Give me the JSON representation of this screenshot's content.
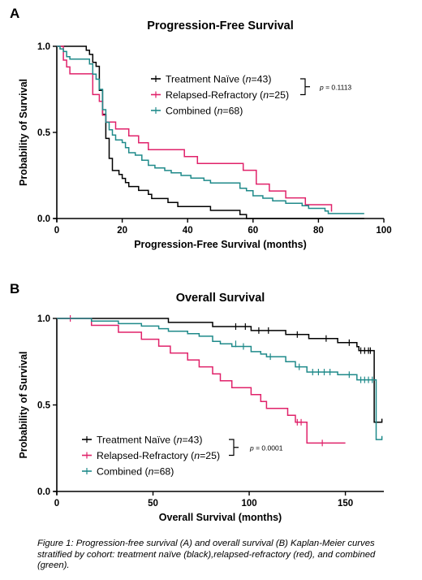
{
  "caption": "Figure 1: Progression-free survival (A) and overall survival (B) Kaplan-Meier curves stratified by cohort: treatment naïve (black),relapsed-refractory (red), and combined (green).",
  "colors": {
    "naive": "#000000",
    "relapsed": "#e0226a",
    "combined": "#1f8a8a"
  },
  "chart_data": [
    {
      "type": "line",
      "panel_label": "A",
      "title": "Progression-Free Survival",
      "xlabel": "Progression-Free Survival (months)",
      "ylabel": "Probability of Survival",
      "xlim": [
        0,
        100
      ],
      "ylim": [
        0,
        1
      ],
      "x_ticks": [
        "0",
        "20",
        "40",
        "60",
        "80",
        "100"
      ],
      "y_ticks": [
        "0.0",
        "0.5",
        "1.0"
      ],
      "legend_position": "upper-right",
      "annotation": "p = 0.1113",
      "step": true,
      "series": [
        {
          "key": "naive",
          "legend": {
            "pre": "Treatment Naïve  (",
            "n": "n",
            "post": "=43)"
          },
          "points": [
            [
              0,
              1.0
            ],
            [
              9,
              1.0
            ],
            [
              9,
              0.977
            ],
            [
              10,
              0.953
            ],
            [
              11,
              0.93
            ],
            [
              11,
              0.907
            ],
            [
              12,
              0.884
            ],
            [
              13,
              0.814
            ],
            [
              13,
              0.744
            ],
            [
              14,
              0.674
            ],
            [
              14,
              0.605
            ],
            [
              15,
              0.535
            ],
            [
              15,
              0.465
            ],
            [
              16,
              0.395
            ],
            [
              16,
              0.349
            ],
            [
              17,
              0.302
            ],
            [
              17,
              0.279
            ],
            [
              19,
              0.256
            ],
            [
              20,
              0.233
            ],
            [
              21,
              0.209
            ],
            [
              22,
              0.186
            ],
            [
              24,
              0.186
            ],
            [
              25,
              0.163
            ],
            [
              27,
              0.163
            ],
            [
              28,
              0.14
            ],
            [
              29,
              0.116
            ],
            [
              33,
              0.116
            ],
            [
              34,
              0.093
            ],
            [
              36,
              0.093
            ],
            [
              37,
              0.07
            ],
            [
              46,
              0.07
            ],
            [
              47,
              0.047
            ],
            [
              55,
              0.047
            ],
            [
              56,
              0.023
            ],
            [
              57,
              0.023
            ],
            [
              58,
              0.0
            ],
            [
              94,
              0.0
            ]
          ]
        },
        {
          "key": "relapsed",
          "legend": {
            "pre": "Relapsed-Refractory  (",
            "n": "n",
            "post": "=25)"
          },
          "points": [
            [
              0,
              1.0
            ],
            [
              1,
              1.0
            ],
            [
              2,
              0.96
            ],
            [
              2,
              0.92
            ],
            [
              3,
              0.88
            ],
            [
              4,
              0.84
            ],
            [
              10,
              0.84
            ],
            [
              11,
              0.72
            ],
            [
              12,
              0.72
            ],
            [
              13,
              0.68
            ],
            [
              14,
              0.6
            ],
            [
              15,
              0.56
            ],
            [
              17,
              0.56
            ],
            [
              18,
              0.52
            ],
            [
              20,
              0.52
            ],
            [
              22,
              0.48
            ],
            [
              24,
              0.48
            ],
            [
              25,
              0.44
            ],
            [
              27,
              0.44
            ],
            [
              28,
              0.4
            ],
            [
              38,
              0.4
            ],
            [
              39,
              0.36
            ],
            [
              42,
              0.36
            ],
            [
              43,
              0.32
            ],
            [
              56,
              0.32
            ],
            [
              57,
              0.28
            ],
            [
              60,
              0.28
            ],
            [
              61,
              0.2
            ],
            [
              64,
              0.2
            ],
            [
              65,
              0.16
            ],
            [
              69,
              0.16
            ],
            [
              70,
              0.12
            ],
            [
              75,
              0.12
            ],
            [
              76,
              0.08
            ],
            [
              83,
              0.08
            ],
            [
              84,
              0.04
            ]
          ]
        },
        {
          "key": "combined",
          "legend": {
            "pre": "Combined (",
            "n": "n",
            "post": "=68)"
          },
          "points": [
            [
              0,
              1.0
            ],
            [
              1,
              0.985
            ],
            [
              2,
              0.97
            ],
            [
              3,
              0.94
            ],
            [
              4,
              0.926
            ],
            [
              9,
              0.926
            ],
            [
              10,
              0.897
            ],
            [
              11,
              0.838
            ],
            [
              12,
              0.809
            ],
            [
              13,
              0.75
            ],
            [
              14,
              0.632
            ],
            [
              15,
              0.559
            ],
            [
              16,
              0.515
            ],
            [
              17,
              0.485
            ],
            [
              18,
              0.456
            ],
            [
              20,
              0.441
            ],
            [
              21,
              0.412
            ],
            [
              22,
              0.382
            ],
            [
              24,
              0.368
            ],
            [
              26,
              0.338
            ],
            [
              28,
              0.309
            ],
            [
              30,
              0.294
            ],
            [
              33,
              0.279
            ],
            [
              35,
              0.265
            ],
            [
              38,
              0.25
            ],
            [
              41,
              0.235
            ],
            [
              45,
              0.221
            ],
            [
              47,
              0.206
            ],
            [
              55,
              0.206
            ],
            [
              56,
              0.176
            ],
            [
              58,
              0.162
            ],
            [
              60,
              0.132
            ],
            [
              63,
              0.118
            ],
            [
              66,
              0.103
            ],
            [
              70,
              0.088
            ],
            [
              75,
              0.074
            ],
            [
              77,
              0.059
            ],
            [
              82,
              0.044
            ],
            [
              83,
              0.029
            ],
            [
              94,
              0.029
            ]
          ]
        }
      ]
    },
    {
      "type": "line",
      "panel_label": "B",
      "title": "Overall Survival",
      "xlabel": "Overall Survival (months)",
      "ylabel": "Probability of Survival",
      "xlim": [
        0,
        170
      ],
      "ylim": [
        0,
        1
      ],
      "x_ticks": [
        "0",
        "50",
        "100",
        "150"
      ],
      "y_ticks": [
        "0.0",
        "0.5",
        "1.0"
      ],
      "legend_position": "lower-left",
      "annotation": "p = 0.0001",
      "step": true,
      "series": [
        {
          "key": "naive",
          "legend": {
            "pre": "Treatment Naïve (",
            "n": "n",
            "post": "=43)"
          },
          "points": [
            [
              0,
              1.0
            ],
            [
              57,
              1.0
            ],
            [
              58,
              0.977
            ],
            [
              80,
              0.977
            ],
            [
              81,
              0.953
            ],
            [
              100,
              0.953
            ],
            [
              101,
              0.93
            ],
            [
              118,
              0.93
            ],
            [
              119,
              0.907
            ],
            [
              130,
              0.907
            ],
            [
              131,
              0.884
            ],
            [
              145,
              0.884
            ],
            [
              146,
              0.86
            ],
            [
              155,
              0.86
            ],
            [
              156,
              0.837
            ],
            [
              157,
              0.814
            ],
            [
              164,
              0.814
            ],
            [
              165,
              0.4
            ],
            [
              169,
              0.4
            ],
            [
              169,
              0.42
            ]
          ],
          "censor": [
            [
              93,
              0.953
            ],
            [
              98,
              0.953
            ],
            [
              105,
              0.93
            ],
            [
              110,
              0.93
            ],
            [
              125,
              0.907
            ],
            [
              140,
              0.884
            ],
            [
              152,
              0.86
            ],
            [
              158,
              0.814
            ],
            [
              160,
              0.814
            ],
            [
              162,
              0.814
            ],
            [
              163,
              0.814
            ]
          ]
        },
        {
          "key": "relapsed",
          "legend": {
            "pre": "Relapsed-Refractory (",
            "n": "n",
            "post": "=25)"
          },
          "points": [
            [
              0,
              1.0
            ],
            [
              17,
              1.0
            ],
            [
              18,
              0.96
            ],
            [
              31,
              0.96
            ],
            [
              32,
              0.92
            ],
            [
              43,
              0.92
            ],
            [
              44,
              0.88
            ],
            [
              52,
              0.88
            ],
            [
              53,
              0.84
            ],
            [
              58,
              0.84
            ],
            [
              59,
              0.8
            ],
            [
              67,
              0.8
            ],
            [
              68,
              0.76
            ],
            [
              73,
              0.76
            ],
            [
              74,
              0.72
            ],
            [
              80,
              0.72
            ],
            [
              81,
              0.68
            ],
            [
              84,
              0.68
            ],
            [
              85,
              0.64
            ],
            [
              90,
              0.64
            ],
            [
              91,
              0.6
            ],
            [
              100,
              0.6
            ],
            [
              101,
              0.56
            ],
            [
              105,
              0.56
            ],
            [
              106,
              0.52
            ],
            [
              108,
              0.52
            ],
            [
              109,
              0.48
            ],
            [
              119,
              0.48
            ],
            [
              120,
              0.44
            ],
            [
              123,
              0.44
            ],
            [
              124,
              0.4
            ],
            [
              129,
              0.4
            ],
            [
              130,
              0.28
            ],
            [
              150,
              0.28
            ]
          ],
          "censor": [
            [
              7,
              1.0
            ],
            [
              125,
              0.4
            ],
            [
              127,
              0.4
            ],
            [
              138,
              0.28
            ]
          ]
        },
        {
          "key": "combined",
          "legend": {
            "pre": "Combined (",
            "n": "n",
            "post": "=68)"
          },
          "points": [
            [
              0,
              1.0
            ],
            [
              17,
              1.0
            ],
            [
              18,
              0.985
            ],
            [
              31,
              0.985
            ],
            [
              32,
              0.97
            ],
            [
              43,
              0.97
            ],
            [
              44,
              0.956
            ],
            [
              52,
              0.956
            ],
            [
              53,
              0.941
            ],
            [
              57,
              0.941
            ],
            [
              58,
              0.926
            ],
            [
              67,
              0.926
            ],
            [
              68,
              0.912
            ],
            [
              73,
              0.912
            ],
            [
              74,
              0.897
            ],
            [
              80,
              0.897
            ],
            [
              81,
              0.867
            ],
            [
              84,
              0.867
            ],
            [
              85,
              0.853
            ],
            [
              90,
              0.853
            ],
            [
              91,
              0.838
            ],
            [
              100,
              0.838
            ],
            [
              101,
              0.808
            ],
            [
              105,
              0.808
            ],
            [
              106,
              0.794
            ],
            [
              108,
              0.794
            ],
            [
              109,
              0.779
            ],
            [
              118,
              0.779
            ],
            [
              119,
              0.75
            ],
            [
              123,
              0.75
            ],
            [
              124,
              0.72
            ],
            [
              129,
              0.72
            ],
            [
              130,
              0.69
            ],
            [
              145,
              0.69
            ],
            [
              146,
              0.675
            ],
            [
              155,
              0.675
            ],
            [
              156,
              0.645
            ],
            [
              165,
              0.645
            ],
            [
              166,
              0.3
            ],
            [
              169,
              0.3
            ],
            [
              169,
              0.32
            ]
          ],
          "censor": [
            [
              93,
              0.853
            ],
            [
              97,
              0.838
            ],
            [
              111,
              0.779
            ],
            [
              126,
              0.72
            ],
            [
              133,
              0.69
            ],
            [
              136,
              0.69
            ],
            [
              139,
              0.69
            ],
            [
              142,
              0.69
            ],
            [
              152,
              0.675
            ],
            [
              158,
              0.645
            ],
            [
              160,
              0.645
            ],
            [
              162,
              0.645
            ],
            [
              164,
              0.645
            ]
          ]
        }
      ]
    }
  ]
}
